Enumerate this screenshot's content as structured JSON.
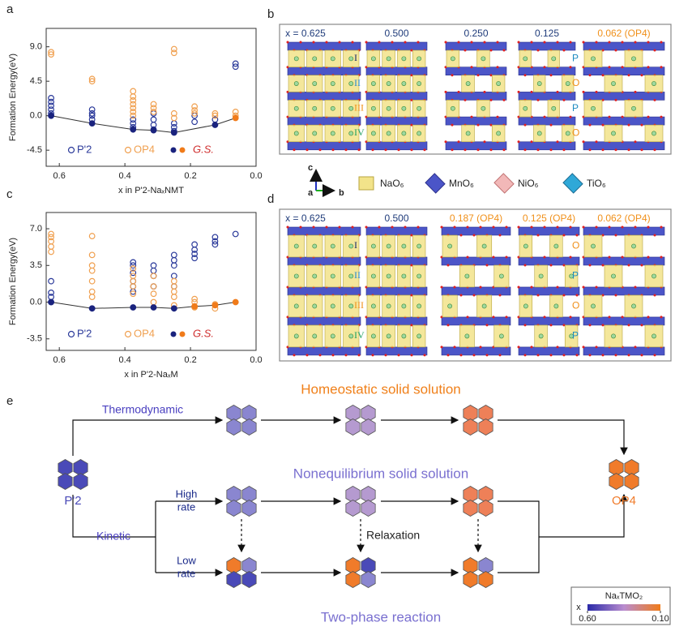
{
  "chart_data": [
    {
      "type": "scatter",
      "panel": "a",
      "xlabel": "x in P'2-NaₓNMT",
      "ylabel": "Formation Energy(eV)",
      "xlim": [
        0.64,
        0
      ],
      "xticks": [
        0.6,
        0.4,
        0.2,
        {
          "value": 0,
          "label": "0.0"
        }
      ],
      "ylim": [
        -6.6,
        11.4
      ],
      "yticks": [
        {
          "value": 9,
          "label": "9.0"
        },
        4.5,
        {
          "value": 0,
          "label": "0.0"
        },
        -4.5
      ],
      "series": [
        {
          "name": "P'2",
          "color": "#2b3a9a",
          "filled": false,
          "x": [
            0.625,
            0.625,
            0.625,
            0.625,
            0.625,
            0.625,
            0.5,
            0.5,
            0.5,
            0.5,
            0.375,
            0.375,
            0.375,
            0.3125,
            0.3125,
            0.3125,
            0.3125,
            0.25,
            0.25,
            0.25,
            0.1875,
            0.1875,
            0.125,
            0.0625,
            0.0625
          ],
          "values": [
            0,
            0.3,
            0.8,
            1.3,
            1.8,
            2.3,
            -0.5,
            0,
            0.3,
            0.8,
            -1.5,
            -1,
            -0.5,
            -1.8,
            -1.2,
            -0.5,
            0.3,
            -2,
            -1.5,
            -1,
            -0.8,
            0,
            -0.5,
            6.4,
            6.8
          ]
        },
        {
          "name": "OP4",
          "color": "#f0a050",
          "filled": false,
          "x": [
            0.625,
            0.625,
            0.5,
            0.5,
            0.375,
            0.375,
            0.375,
            0.375,
            0.375,
            0.375,
            0.375,
            0.3125,
            0.3125,
            0.3125,
            0.25,
            0.25,
            0.25,
            0.25,
            0.1875,
            0.1875,
            0.1875,
            0.125,
            0.125,
            0.0625,
            0.0625
          ],
          "values": [
            8,
            8.3,
            4.5,
            4.8,
            0,
            0.5,
            1,
            1.5,
            2,
            2.5,
            3.2,
            0.5,
            1,
            1.5,
            -0.3,
            0.3,
            8.2,
            8.7,
            0.3,
            0.7,
            1.2,
            0,
            0.3,
            0,
            0.5
          ]
        },
        {
          "name": "G.S.",
          "colors": [
            "#1a237e",
            "#1a237e",
            "#1a237e",
            "#1a237e",
            "#1a237e",
            "#1a237e",
            "#f07b1a"
          ],
          "filled": true,
          "line": "#333333",
          "x": [
            0.625,
            0.5,
            0.375,
            0.3125,
            0.25,
            0.125,
            0.0625
          ],
          "values": [
            0,
            -1,
            -1.8,
            -1.9,
            -2.2,
            -1.2,
            -0.3
          ]
        }
      ]
    },
    {
      "type": "scatter",
      "panel": "c",
      "xlabel": "x in P'2-NaₓM",
      "ylabel": "Formation Energy(eV)",
      "xlim": [
        0.64,
        0
      ],
      "xticks": [
        0.6,
        0.4,
        0.2,
        {
          "value": 0,
          "label": "0.0"
        }
      ],
      "ylim": [
        -4.6,
        8.55
      ],
      "yticks": [
        {
          "value": 7,
          "label": "7.0"
        },
        3.5,
        {
          "value": 0,
          "label": "0.0"
        },
        -3.5
      ],
      "series": [
        {
          "name": "P'2",
          "color": "#2b3a9a",
          "filled": false,
          "x": [
            0.625,
            0.625,
            0.625,
            0.625,
            0.375,
            0.375,
            0.375,
            0.375,
            0.375,
            0.375,
            0.3125,
            0.3125,
            0.3125,
            0.3125,
            0.25,
            0.25,
            0.25,
            0.25,
            0.25,
            0.1875,
            0.1875,
            0.1875,
            0.1875,
            0.125,
            0.125,
            0.125,
            0.0625
          ],
          "values": [
            0,
            0.5,
            0.9,
            2,
            1,
            1.5,
            2,
            2.8,
            3.5,
            3.8,
            1.5,
            2.5,
            3,
            3.5,
            1.5,
            2.5,
            3.5,
            4,
            4.5,
            4.2,
            4.6,
            5,
            5.5,
            5.5,
            5.8,
            6.2,
            6.5
          ]
        },
        {
          "name": "OP4",
          "color": "#f0a050",
          "filled": false,
          "x": [
            0.625,
            0.625,
            0.625,
            0.625,
            0.625,
            0.5,
            0.5,
            0.5,
            0.5,
            0.5,
            0.5,
            0.5,
            0.375,
            0.375,
            0.375,
            0.375,
            0.375,
            0.3125,
            0.3125,
            0.3125,
            0.3125,
            0.25,
            0.25,
            0.25,
            0.25,
            0.25,
            0.1875,
            0.1875,
            0.1875,
            0.125,
            0.125
          ],
          "values": [
            4.8,
            5.3,
            5.8,
            6.2,
            6.5,
            0.5,
            1,
            2,
            3,
            3.5,
            4.5,
            6.3,
            0.8,
            1.5,
            2,
            2.5,
            3.2,
            0,
            0.8,
            1.5,
            2.5,
            -0.3,
            0.5,
            1,
            1.5,
            2,
            -0.5,
            0,
            0.3,
            -0.6,
            -0.2
          ]
        },
        {
          "name": "G.S.",
          "colors": [
            "#1a237e",
            "#1a237e",
            "#1a237e",
            "#1a237e",
            "#1a237e",
            "#f07b1a",
            "#f07b1a",
            "#f07b1a"
          ],
          "filled": true,
          "line": "#333333",
          "x": [
            0.625,
            0.5,
            0.375,
            0.3125,
            0.25,
            0.1875,
            0.125,
            0.0625
          ],
          "values": [
            0,
            -0.6,
            -0.5,
            -0.5,
            -0.6,
            -0.4,
            -0.3,
            0
          ]
        }
      ]
    }
  ],
  "panel_b": {
    "letter": "b",
    "columns": [
      "x = 0.625",
      "0.500",
      "0.250",
      "0.125",
      "0.062 (OP4)"
    ],
    "layers": [
      "I",
      "II",
      "III",
      "IV"
    ],
    "stacking": [
      "P",
      "O",
      "P",
      "O"
    ]
  },
  "legend": {
    "axes": [
      "c",
      "a",
      "b"
    ],
    "items": [
      "NaO₆",
      "MnO₆",
      "NiO₆",
      "TiO₆"
    ]
  },
  "panel_d": {
    "letter": "d",
    "columns": [
      "x = 0.625",
      "0.500",
      "0.187 (OP4)",
      "0.125 (OP4)",
      "0.062 (OP4)"
    ],
    "layers": [
      "I",
      "II",
      "III",
      "IV"
    ],
    "stacking": [
      "O",
      "P",
      "O",
      "P"
    ]
  },
  "panel_e": {
    "letter": "e",
    "top": "Homeostatic  solid solution",
    "middle": "Nonequilibrium solid solution",
    "bottom": "Two-phase reaction",
    "thermo": "Thermodynamic",
    "kinetic": "Kinetic",
    "high": [
      "High",
      "rate"
    ],
    "low": [
      "Low",
      "rate"
    ],
    "relaxation": "Relaxation",
    "start": "P'2",
    "end": "OP4",
    "colorbar": {
      "title": "NaₓTMO₂",
      "axis": "x",
      "lim": [
        0.6,
        0.1
      ],
      "ticks": [
        {
          "value": 0.6,
          "label": "0.60"
        },
        {
          "value": 0.1,
          "label": "0.10"
        }
      ]
    }
  }
}
